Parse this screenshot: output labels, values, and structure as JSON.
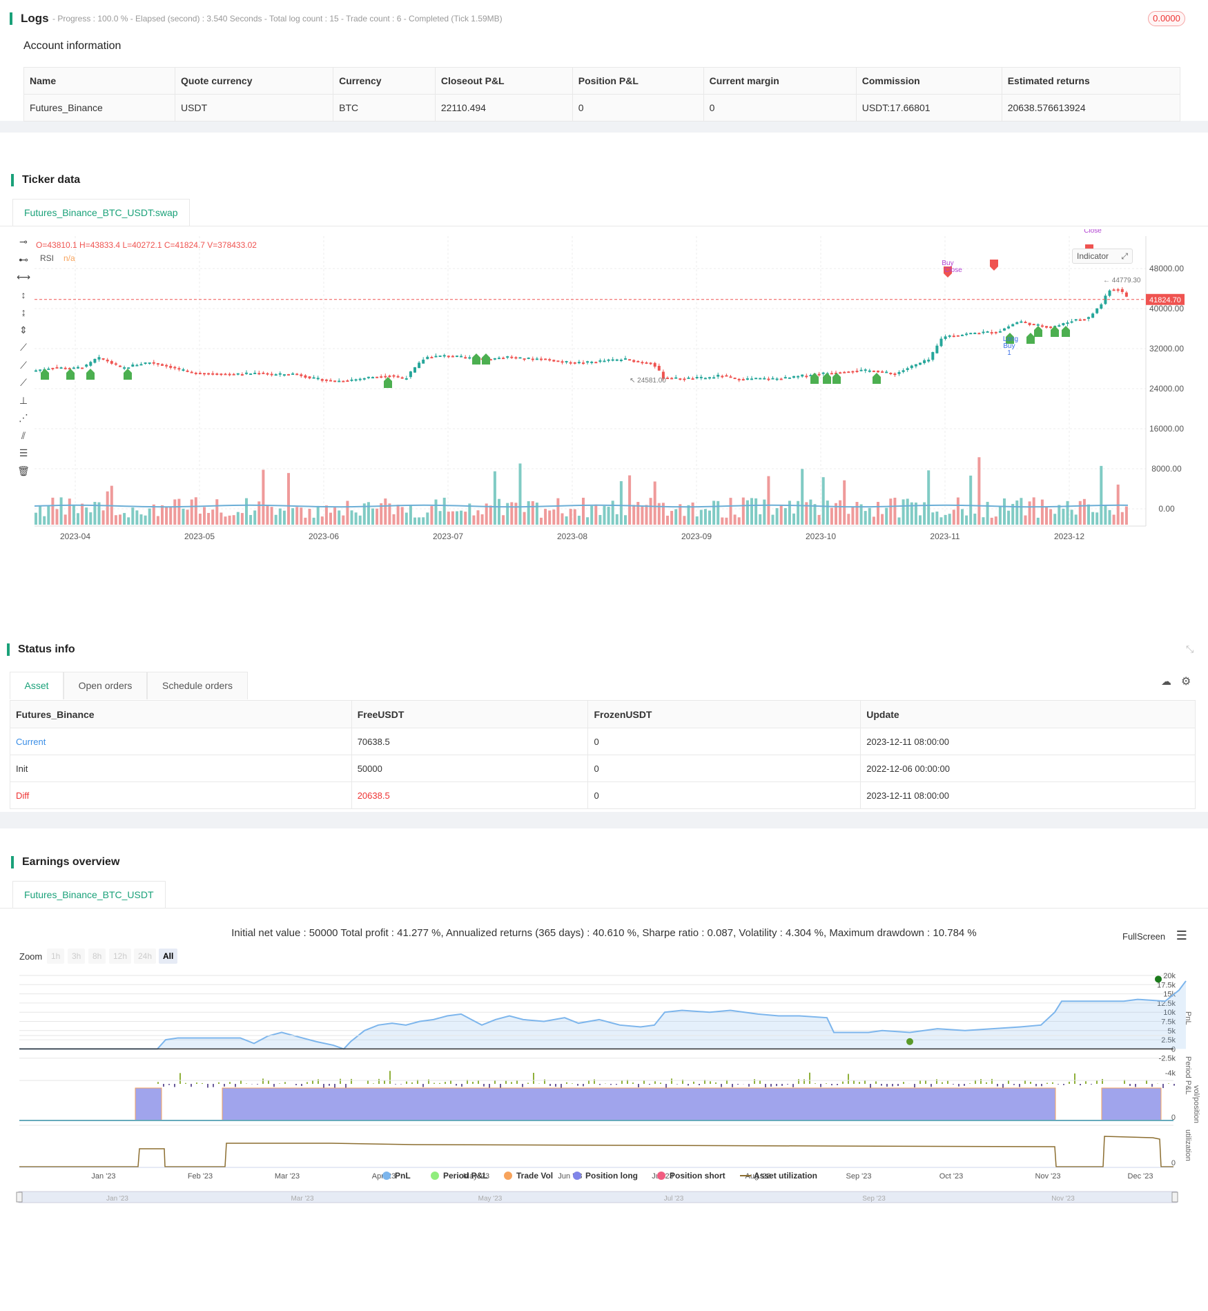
{
  "logs": {
    "title": "Logs",
    "summary": "- Progress : 100.0 % - Elapsed (second) : 3.540  Seconds - Total log count : 15 - Trade count : 6 - Completed (Tick 1.59MB)",
    "badge": "0.0000"
  },
  "account": {
    "title": "Account information",
    "headers": [
      "Name",
      "Quote currency",
      "Currency",
      "Closeout P&L",
      "Position P&L",
      "Current margin",
      "Commission",
      "Estimated returns"
    ],
    "row": [
      "Futures_Binance",
      "USDT",
      "BTC",
      "22110.494",
      "0",
      "0",
      "USDT:17.66801",
      "20638.576613924"
    ]
  },
  "ticker": {
    "title": "Ticker data",
    "tab": "Futures_Binance_BTC_USDT:swap",
    "ohlc": "O=43810.1 H=43833.4 L=40272.1 C=41824.7 V=378433.02",
    "rsi_label": "RSI",
    "rsi_value": "n/a",
    "indicator_btn": "Indicator",
    "last_price": "41824.70",
    "high_label": "44779.30",
    "low_label": "24581.00",
    "y_ticks": [
      "48000.00",
      "40000.00",
      "32000.00",
      "24000.00",
      "16000.00",
      "8000.00",
      "0.00"
    ],
    "x_ticks": [
      "2023-04",
      "2023-05",
      "2023-06",
      "2023-07",
      "2023-08",
      "2023-09",
      "2023-10",
      "2023-11",
      "2023-12"
    ],
    "markers": {
      "buy": "Buy",
      "close": "Close",
      "long": "Long",
      "one": "1"
    },
    "colors": {
      "up": "#26a69a",
      "down": "#ef5350",
      "signal": "#4caf50",
      "rsi": "#6baed6"
    }
  },
  "status": {
    "title": "Status info",
    "tabs": [
      "Asset",
      "Open orders",
      "Schedule orders"
    ],
    "headers": [
      "Futures_Binance",
      "FreeUSDT",
      "FrozenUSDT",
      "Update"
    ],
    "rows": [
      [
        "Current",
        "70638.5",
        "0",
        "2023-12-11 08:00:00"
      ],
      [
        "Init",
        "50000",
        "0",
        "2022-12-06 00:00:00"
      ],
      [
        "Diff",
        "20638.5",
        "0",
        "2023-12-11 08:00:00"
      ]
    ]
  },
  "earnings": {
    "title": "Earnings overview",
    "tab": "Futures_Binance_BTC_USDT",
    "summary": "Initial net value : 50000 Total profit : 41.277 %, Annualized returns (365 days) : 40.610 %, Sharpe ratio : 0.087, Volatility : 4.304 %, Maximum drawdown : 10.784 %",
    "fullscreen": "FullScreen",
    "zoom_label": "Zoom",
    "zoom_options": [
      "1h",
      "3h",
      "8h",
      "12h",
      "24h",
      "All"
    ],
    "pnl_ticks": [
      "20k",
      "17.5k",
      "15k",
      "12.5k",
      "10k",
      "7.5k",
      "5k",
      "2.5k",
      "0",
      "-2.5k"
    ],
    "period_ticks": [
      "-4k"
    ],
    "vol_ticks": [
      "0"
    ],
    "util_ticks": [
      "0"
    ],
    "axis_titles": [
      "PnL",
      "Period P&L",
      "vol/position",
      "utilization"
    ],
    "x_ticks": [
      "Jan '23",
      "Feb '23",
      "Mar '23",
      "Apr '23",
      "May '23",
      "Jun '23",
      "Jul '23",
      "Aug '23",
      "Sep '23",
      "Oct '23",
      "Nov '23",
      "Dec '23"
    ],
    "navigator_ticks": [
      "Jan '23",
      "Mar '23",
      "May '23",
      "Jul '23",
      "Sep '23",
      "Nov '23"
    ],
    "legend": [
      {
        "name": "PnL",
        "color": "#7cb5ec"
      },
      {
        "name": "Period P&L",
        "color": "#90ed7d"
      },
      {
        "name": "Trade Vol",
        "color": "#f7a35c"
      },
      {
        "name": "Position long",
        "color": "#8085e9"
      },
      {
        "name": "Position short",
        "color": "#f15c80"
      },
      {
        "name": "Asset utilization",
        "color": "#8b6d2f"
      }
    ]
  }
}
